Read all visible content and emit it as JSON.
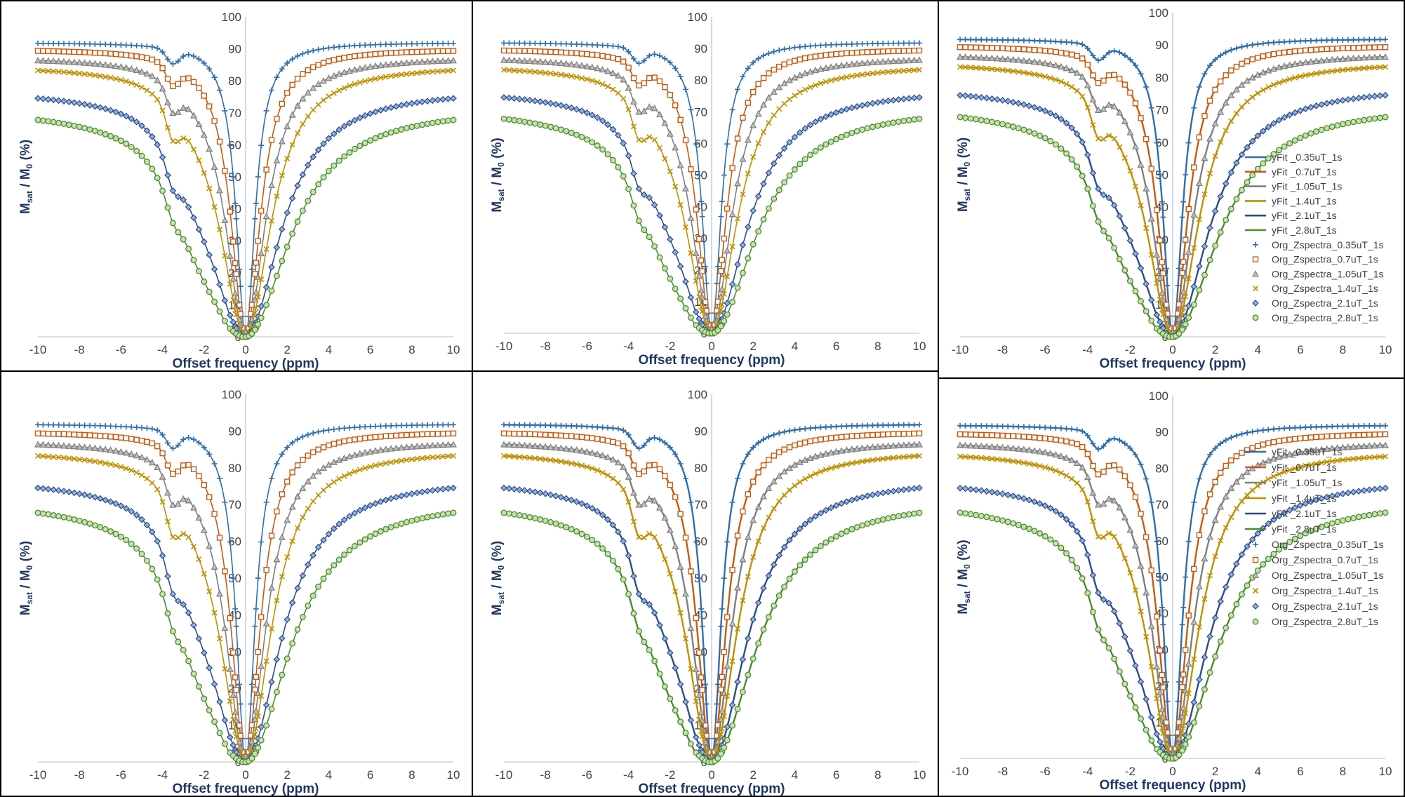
{
  "chart_data": {
    "type": "line",
    "panels": 6,
    "xlabel": "Offset frequency (ppm)",
    "ylabel_main": "M",
    "ylabel_sub1": "sat",
    "ylabel_mid": " / M",
    "ylabel_sub2": "0",
    "ylabel_end": " (%)",
    "xlim": [
      -10,
      10
    ],
    "ylim": [
      0,
      100
    ],
    "x_ticks": [
      "-10",
      "-8",
      "-6",
      "-4",
      "-2",
      "0",
      "2",
      "4",
      "6",
      "8",
      "10"
    ],
    "y_ticks": [
      "0",
      "10",
      "20",
      "30",
      "40",
      "50",
      "60",
      "70",
      "80",
      "90",
      "100"
    ],
    "legend": [
      "yFit _0.35uT_1s",
      "yFit _0.7uT_1s",
      "yFit _1.05uT_1s",
      "yFit _1.4uT_1s",
      "yFit _2.1uT_1s",
      "yFit _2.8uT_1s",
      "Org_Zspectra_0.35uT_1s",
      "Org_Zspectra_0.7uT_1s",
      "Org_Zspectra_1.05uT_1s",
      "Org_Zspectra_1.4uT_1s",
      "Org_Zspectra_2.1uT_1s",
      "Org_Zspectra_2.8uT_1s"
    ],
    "series": [
      {
        "b1": "0.35uT",
        "baseline": 92,
        "dip_amp": 4.5,
        "mt_amp": 0,
        "w": 0.55,
        "color": "#2f6eae",
        "marker": "plus"
      },
      {
        "b1": "0.7uT",
        "baseline": 90,
        "dip_amp": 6,
        "mt_amp": 1,
        "w": 0.85,
        "color": "#c55a11",
        "marker": "square"
      },
      {
        "b1": "1.05uT",
        "baseline": 87.5,
        "dip_amp": 7,
        "mt_amp": 3,
        "w": 1.15,
        "color": "#7f7f7f",
        "marker": "triangle"
      },
      {
        "b1": "1.4uT",
        "baseline": 85,
        "dip_amp": 8,
        "mt_amp": 5,
        "w": 1.45,
        "color": "#bf9000",
        "marker": "x"
      },
      {
        "b1": "2.1uT",
        "baseline": 77.5,
        "dip_amp": 6,
        "mt_amp": 10,
        "w": 2.0,
        "color": "#2e4c8c",
        "marker": "diamond"
      },
      {
        "b1": "2.8uT",
        "baseline": 72,
        "dip_amp": 4,
        "mt_amp": 12,
        "w": 2.5,
        "color": "#4a8c2e",
        "marker": "circle"
      }
    ],
    "grid": false
  }
}
